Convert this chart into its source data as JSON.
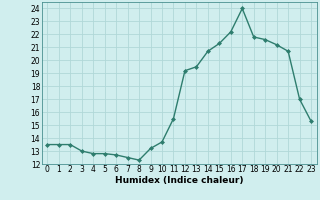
{
  "x": [
    0,
    1,
    2,
    3,
    4,
    5,
    6,
    7,
    8,
    9,
    10,
    11,
    12,
    13,
    14,
    15,
    16,
    17,
    18,
    19,
    20,
    21,
    22,
    23
  ],
  "y": [
    13.5,
    13.5,
    13.5,
    13.0,
    12.8,
    12.8,
    12.7,
    12.5,
    12.3,
    13.2,
    13.7,
    15.5,
    19.2,
    19.5,
    20.7,
    21.3,
    22.2,
    24.0,
    21.8,
    21.6,
    21.2,
    20.7,
    17.0,
    15.3
  ],
  "line_color": "#2e7d6e",
  "marker": "D",
  "marker_size": 2.0,
  "bg_color": "#d0eeee",
  "grid_color": "#b0d8d8",
  "xlabel": "Humidex (Indice chaleur)",
  "xlim": [
    -0.5,
    23.5
  ],
  "ylim": [
    12,
    24.5
  ],
  "yticks": [
    12,
    13,
    14,
    15,
    16,
    17,
    18,
    19,
    20,
    21,
    22,
    23,
    24
  ],
  "xticks": [
    0,
    1,
    2,
    3,
    4,
    5,
    6,
    7,
    8,
    9,
    10,
    11,
    12,
    13,
    14,
    15,
    16,
    17,
    18,
    19,
    20,
    21,
    22,
    23
  ],
  "xlabel_fontsize": 6.5,
  "tick_fontsize": 5.5,
  "linewidth": 1.0
}
